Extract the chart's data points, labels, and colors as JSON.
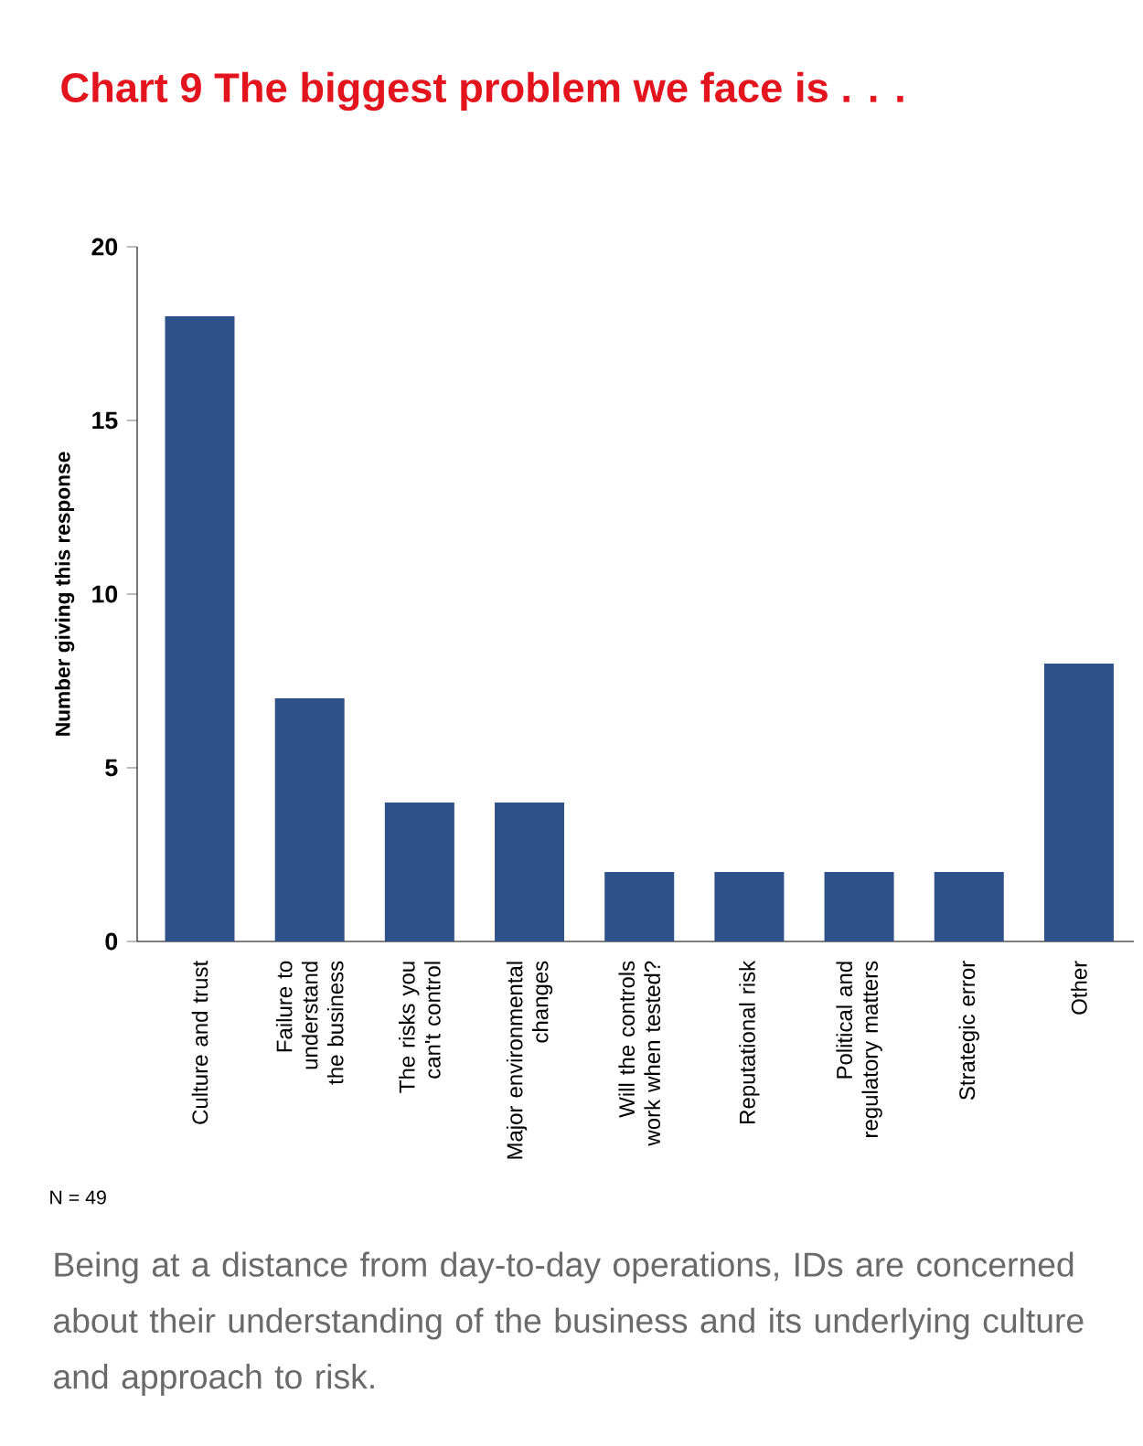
{
  "chart_data": {
    "type": "bar",
    "title": "Chart 9   The biggest problem we face is . . .",
    "ylabel": "Number giving this response",
    "categories": [
      "Culture and trust",
      "Failure to understand the business",
      "The risks you can't control",
      "Major environmental changes",
      "Will the controls work when tested?",
      "Reputational risk",
      "Political and regulatory matters",
      "Strategic error",
      "Other"
    ],
    "values": [
      18,
      7,
      4,
      4,
      2,
      2,
      2,
      2,
      8
    ],
    "color": "#2e5189",
    "ylim": [
      0,
      20
    ],
    "yticks": [
      0,
      5,
      10,
      15,
      20
    ],
    "grid": false,
    "annotations": [
      "N = 49",
      "Being at a distance from day-to-day operations, IDs are concerned about their understanding of the business and its underlying culture and approach to risk."
    ]
  }
}
